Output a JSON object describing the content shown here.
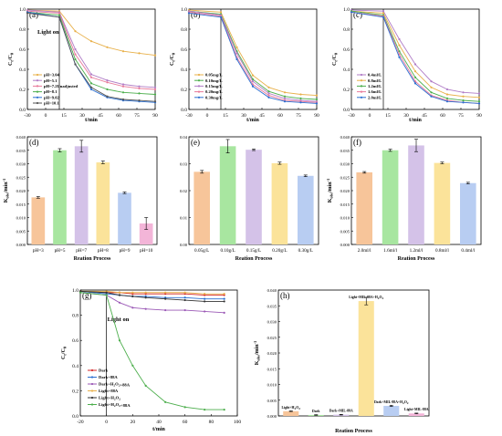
{
  "chart_data": [
    {
      "id": "a",
      "panel_label": "(a)",
      "type": "line",
      "note": "Light on",
      "xlabel": "t/min",
      "ylabel": "C/C0",
      "xlim": [
        -30,
        90
      ],
      "ylim": [
        0,
        1.0
      ],
      "xticks": [
        "-30",
        "0",
        "15",
        "30",
        "45",
        "60",
        "75",
        "90"
      ],
      "yticks": [
        "0.0",
        "0.2",
        "0.4",
        "0.6",
        "0.8",
        "1.0"
      ],
      "x": [
        -30,
        0,
        15,
        30,
        45,
        60,
        75,
        90
      ],
      "series": [
        {
          "name": "pH=3.04",
          "color": "#e8b04a",
          "values": [
            0.99,
            0.98,
            0.78,
            0.68,
            0.62,
            0.58,
            0.56,
            0.54
          ]
        },
        {
          "name": "pH=5.1",
          "color": "#b07cc6",
          "values": [
            0.99,
            0.97,
            0.6,
            0.35,
            0.29,
            0.25,
            0.23,
            0.22
          ]
        },
        {
          "name": "pH=7.2Unadjusted",
          "color": "#e8799a",
          "values": [
            0.98,
            0.96,
            0.55,
            0.32,
            0.27,
            0.23,
            0.21,
            0.2
          ]
        },
        {
          "name": "pH=8.1",
          "color": "#4cae4c",
          "values": [
            0.97,
            0.94,
            0.5,
            0.26,
            0.2,
            0.17,
            0.16,
            0.15
          ]
        },
        {
          "name": "pH=9.02",
          "color": "#2b6fd1",
          "values": [
            0.97,
            0.92,
            0.45,
            0.2,
            0.12,
            0.09,
            0.08,
            0.07
          ]
        },
        {
          "name": "pH=10.1",
          "color": "#555555",
          "values": [
            0.96,
            0.92,
            0.45,
            0.22,
            0.13,
            0.1,
            0.09,
            0.08
          ]
        }
      ]
    },
    {
      "id": "b",
      "panel_label": "(b)",
      "type": "line",
      "note": "",
      "xlabel": "t/min",
      "ylabel": "C/C0",
      "xlim": [
        -30,
        90
      ],
      "ylim": [
        0,
        1.0
      ],
      "xticks": [
        "-30",
        "0",
        "15",
        "30",
        "45",
        "60",
        "75",
        "90"
      ],
      "yticks": [
        "0.0",
        "0.2",
        "0.4",
        "0.6",
        "0.8",
        "1.0"
      ],
      "x": [
        -30,
        0,
        15,
        30,
        45,
        60,
        75,
        90
      ],
      "series": [
        {
          "name": "0.05mg/L",
          "color": "#e8b04a",
          "values": [
            0.99,
            0.97,
            0.62,
            0.34,
            0.22,
            0.17,
            0.15,
            0.14
          ]
        },
        {
          "name": "0.10mg/L",
          "color": "#4cae4c",
          "values": [
            0.98,
            0.95,
            0.58,
            0.3,
            0.18,
            0.13,
            0.11,
            0.1
          ]
        },
        {
          "name": "0.15mg/L",
          "color": "#b07cc6",
          "values": [
            0.98,
            0.94,
            0.56,
            0.28,
            0.16,
            0.11,
            0.09,
            0.08
          ]
        },
        {
          "name": "0.20mg/L",
          "color": "#e8799a",
          "values": [
            0.97,
            0.93,
            0.52,
            0.25,
            0.14,
            0.09,
            0.08,
            0.07
          ]
        },
        {
          "name": "0.30mg/L",
          "color": "#2b6fd1",
          "values": [
            0.96,
            0.92,
            0.5,
            0.23,
            0.12,
            0.08,
            0.07,
            0.06
          ]
        }
      ]
    },
    {
      "id": "c",
      "panel_label": "(c)",
      "type": "line",
      "note": "",
      "xlabel": "t/min",
      "ylabel": "C/C0",
      "xlim": [
        -30,
        90
      ],
      "ylim": [
        0,
        1.0
      ],
      "xticks": [
        "-30",
        "0",
        "15",
        "30",
        "45",
        "60",
        "75",
        "90"
      ],
      "yticks": [
        "0.0",
        "0.2",
        "0.4",
        "0.6",
        "0.8",
        "1.0"
      ],
      "x": [
        -30,
        0,
        15,
        30,
        45,
        60,
        75,
        90
      ],
      "series": [
        {
          "name": "0.4ml/L",
          "color": "#b07cc6",
          "values": [
            0.99,
            0.98,
            0.7,
            0.45,
            0.28,
            0.2,
            0.17,
            0.16
          ]
        },
        {
          "name": "0.8ml/L",
          "color": "#e8b04a",
          "values": [
            0.98,
            0.96,
            0.64,
            0.38,
            0.22,
            0.15,
            0.13,
            0.12
          ]
        },
        {
          "name": "1.2ml/L",
          "color": "#4cae4c",
          "values": [
            0.98,
            0.94,
            0.58,
            0.32,
            0.17,
            0.11,
            0.09,
            0.08
          ]
        },
        {
          "name": "1.6ml/L",
          "color": "#e8799a",
          "values": [
            0.97,
            0.93,
            0.55,
            0.28,
            0.14,
            0.09,
            0.07,
            0.06
          ]
        },
        {
          "name": "2.0ml/L",
          "color": "#2b6fd1",
          "values": [
            0.97,
            0.92,
            0.52,
            0.26,
            0.13,
            0.08,
            0.07,
            0.06
          ]
        }
      ]
    },
    {
      "id": "d",
      "panel_label": "(d)",
      "type": "bar",
      "xlabel": "Reation Process",
      "ylabel": "Kobs/min-1",
      "ylim": [
        0,
        0.04
      ],
      "yticks": [
        "0.000",
        "0.005",
        "0.010",
        "0.015",
        "0.020",
        "0.025",
        "0.030",
        "0.035",
        "0.040"
      ],
      "categories": [
        "pH=3",
        "pH=5",
        "pH=7",
        "pH=8",
        "pH=9",
        "pH=10"
      ],
      "values": [
        0.0175,
        0.035,
        0.0365,
        0.0305,
        0.0192,
        0.0078
      ],
      "errors": [
        0.0003,
        0.0006,
        0.0022,
        0.0005,
        0.0003,
        0.0022
      ],
      "colors": [
        "#f7c59a",
        "#a8e6a0",
        "#d4c2e8",
        "#fbe39a",
        "#b8cdf2",
        "#f3b5d8"
      ]
    },
    {
      "id": "e",
      "panel_label": "(e)",
      "type": "bar",
      "xlabel": "Reation Process",
      "ylabel": "",
      "ylim": [
        0,
        0.04
      ],
      "yticks": [
        "0.00",
        "0.01",
        "0.02",
        "0.03",
        "0.04"
      ],
      "categories": [
        "0.05g/L",
        "0.10g/L",
        "0.15g/L",
        "0.20g/L",
        "0.30g/L"
      ],
      "values": [
        0.027,
        0.0365,
        0.0352,
        0.0302,
        0.0255
      ],
      "errors": [
        0.0005,
        0.0025,
        0.0003,
        0.0004,
        0.0003
      ],
      "colors": [
        "#f7c59a",
        "#a8e6a0",
        "#d4c2e8",
        "#fbe39a",
        "#b8cdf2"
      ]
    },
    {
      "id": "f",
      "panel_label": "(f)",
      "type": "bar",
      "xlabel": "Reation Process",
      "ylabel": "Kobs/min-1",
      "ylim": [
        0,
        0.04
      ],
      "yticks": [
        "0.000",
        "0.005",
        "0.010",
        "0.015",
        "0.020",
        "0.025",
        "0.030",
        "0.035",
        "0.040"
      ],
      "categories": [
        "2.0ml/l",
        "1.6ml/l",
        "1.2ml/l",
        "0.8ml/l",
        "0.4ml/l"
      ],
      "values": [
        0.0268,
        0.035,
        0.0368,
        0.0303,
        0.0228
      ],
      "errors": [
        0.0003,
        0.0004,
        0.0023,
        0.0003,
        0.0003
      ],
      "colors": [
        "#f7c59a",
        "#a8e6a0",
        "#d4c2e8",
        "#fbe39a",
        "#b8cdf2"
      ]
    },
    {
      "id": "g",
      "panel_label": "(g)",
      "type": "line",
      "note": "Light on",
      "xlabel": "t/min",
      "ylabel": "C/C0",
      "xlim": [
        -20,
        100
      ],
      "ylim": [
        0,
        1.0
      ],
      "xticks": [
        "-20",
        "0",
        "20",
        "40",
        "60",
        "80",
        "100"
      ],
      "yticks": [
        "0.0",
        "0.2",
        "0.4",
        "0.6",
        "0.8",
        "1.0"
      ],
      "x": [
        -20,
        0,
        10,
        20,
        30,
        45,
        60,
        75,
        90
      ],
      "series": [
        {
          "name": "Dark",
          "color": "#d62728",
          "values": [
            0.99,
            0.98,
            0.98,
            0.97,
            0.97,
            0.97,
            0.97,
            0.96,
            0.96
          ]
        },
        {
          "name": "Dark+88A",
          "color": "#2b6fd1",
          "values": [
            0.99,
            0.97,
            0.96,
            0.95,
            0.95,
            0.94,
            0.94,
            0.93,
            0.93
          ]
        },
        {
          "name": "Dark+H2O2+88A",
          "color": "#9b59b6",
          "values": [
            0.98,
            0.96,
            0.9,
            0.86,
            0.85,
            0.84,
            0.84,
            0.83,
            0.82
          ]
        },
        {
          "name": "Light+88A",
          "color": "#e8b04a",
          "values": [
            0.99,
            0.99,
            0.98,
            0.98,
            0.98,
            0.98,
            0.98,
            0.97,
            0.97
          ]
        },
        {
          "name": "Light+H2O2",
          "color": "#333333",
          "values": [
            0.99,
            0.98,
            0.96,
            0.95,
            0.94,
            0.93,
            0.92,
            0.91,
            0.91
          ]
        },
        {
          "name": "Light+H2O2+88A",
          "color": "#4cae4c",
          "values": [
            0.98,
            0.96,
            0.6,
            0.4,
            0.24,
            0.11,
            0.07,
            0.05,
            0.05
          ]
        }
      ]
    },
    {
      "id": "h",
      "panel_label": "(h)",
      "type": "bar",
      "xlabel": "Reation Process",
      "ylabel": "Kobs/min-1",
      "ylim": [
        0,
        0.04
      ],
      "yticks": [
        "0.000",
        "0.005",
        "0.010",
        "0.015",
        "0.020",
        "0.025",
        "0.030",
        "0.035",
        "0.040"
      ],
      "categories": [
        "Light+H2O2",
        "Dark",
        "Dark+MIL-88A",
        "Light+MIL-88A+H2O2",
        "Dark+MIL-88A+H2O2",
        "Light+MIL-88A"
      ],
      "values": [
        0.0015,
        0.0003,
        0.0004,
        0.0365,
        0.0032,
        0.0008
      ],
      "errors": [
        0.0001,
        0.0001,
        0.0001,
        0.0012,
        0.0002,
        0.0001
      ],
      "colors": [
        "#f7c59a",
        "#a8e6a0",
        "#d4c2e8",
        "#fbe39a",
        "#b8cdf2",
        "#f3b5d8"
      ]
    }
  ]
}
